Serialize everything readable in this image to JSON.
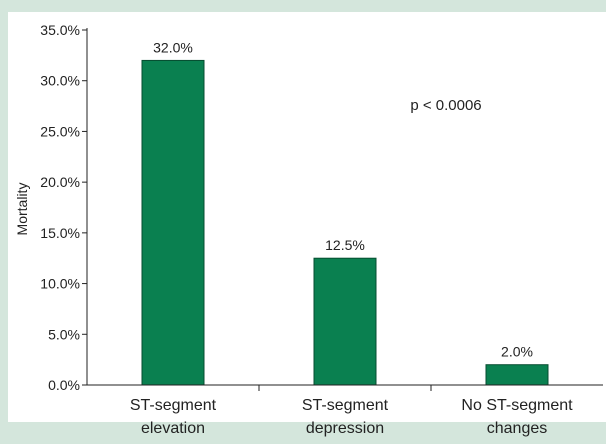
{
  "chart_data": {
    "type": "bar",
    "categories": [
      [
        "ST-segment",
        "elevation"
      ],
      [
        "ST-segment",
        "depression"
      ],
      [
        "No ST-segment",
        "changes"
      ]
    ],
    "values": [
      32.0,
      12.5,
      2.0
    ],
    "value_labels": [
      "32.0%",
      "12.5%",
      "2.0%"
    ],
    "title": "",
    "xlabel": "",
    "ylabel": "Mortality",
    "ylim": [
      0,
      35
    ],
    "ytick_values": [
      0,
      5,
      10,
      15,
      20,
      25,
      30,
      35
    ],
    "ytick_labels": [
      "0.0%",
      "5.0%",
      "10.0%",
      "15.0%",
      "20.0%",
      "25.0%",
      "30.0%",
      "35.0%"
    ],
    "annotation": "p < 0.0006",
    "grid": false,
    "legend": "none",
    "colors": {
      "bar": "#0a8050",
      "bar_stroke": "#064d30",
      "plot_background": "#ffffff",
      "frame_background": "#d4e6dc",
      "axis": "#222222"
    }
  }
}
